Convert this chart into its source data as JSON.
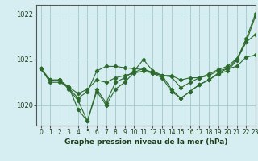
{
  "bg_color": "#d6eef2",
  "grid_color": "#aacccc",
  "line_color": "#2d6a2d",
  "title": "Graphe pression niveau de la mer (hPa)",
  "xlim": [
    -0.5,
    23
  ],
  "ylim": [
    1019.55,
    1022.2
  ],
  "yticks": [
    1020,
    1021,
    1022
  ],
  "xticks": [
    0,
    1,
    2,
    3,
    4,
    5,
    6,
    7,
    8,
    9,
    10,
    11,
    12,
    13,
    14,
    15,
    16,
    17,
    18,
    19,
    20,
    21,
    22,
    23
  ],
  "series": [
    [
      1020.8,
      1020.5,
      1020.5,
      1020.4,
      1019.9,
      1019.65,
      1020.35,
      1020.05,
      1020.5,
      1020.6,
      1020.75,
      1021.0,
      1020.75,
      1020.65,
      1020.35,
      1020.15,
      1020.3,
      1020.45,
      1020.55,
      1020.7,
      1020.8,
      1021.0,
      1021.45,
      1022.0
    ],
    [
      1020.8,
      1020.55,
      1020.55,
      1020.4,
      1020.25,
      1020.35,
      1020.55,
      1020.5,
      1020.6,
      1020.65,
      1020.7,
      1020.75,
      1020.7,
      1020.65,
      1020.65,
      1020.55,
      1020.6,
      1020.6,
      1020.65,
      1020.75,
      1020.8,
      1020.85,
      1021.05,
      1021.1
    ],
    [
      1020.8,
      1020.55,
      1020.55,
      1020.38,
      1020.15,
      1020.3,
      1020.75,
      1020.85,
      1020.85,
      1020.82,
      1020.8,
      1020.78,
      1020.72,
      1020.65,
      1020.62,
      1020.38,
      1020.5,
      1020.6,
      1020.68,
      1020.78,
      1020.85,
      1021.02,
      1021.38,
      1021.95
    ],
    [
      1020.8,
      1020.55,
      1020.55,
      1020.35,
      1020.1,
      1019.65,
      1020.3,
      1020.0,
      1020.35,
      1020.5,
      1020.72,
      1020.8,
      1020.7,
      1020.6,
      1020.3,
      1020.15,
      1020.3,
      1020.45,
      1020.55,
      1020.68,
      1020.75,
      1020.98,
      1021.38,
      1021.55
    ]
  ],
  "title_fontsize": 6.5,
  "tick_fontsize": 5.5,
  "ytick_fontsize": 6.0
}
